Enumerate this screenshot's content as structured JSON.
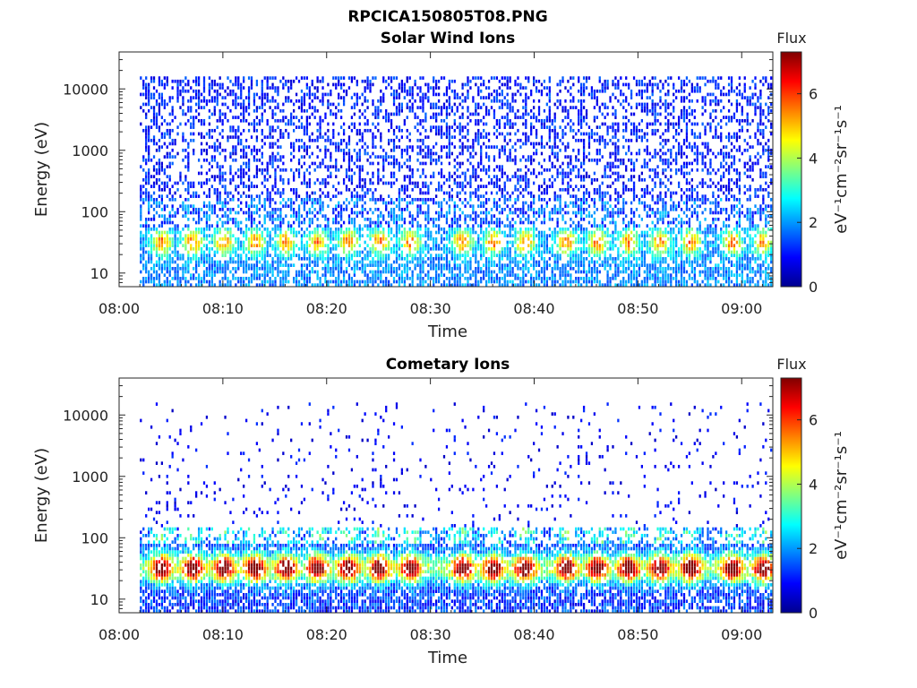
{
  "figure_title": "RPCICA150805T08.PNG",
  "colormap": [
    "#00008f",
    "#0000ff",
    "#0080ff",
    "#00ffff",
    "#80ff80",
    "#ffff00",
    "#ff8000",
    "#ff0000",
    "#800000"
  ],
  "chart_data": [
    {
      "type": "heatmap",
      "title": "Solar Wind Ions",
      "xlabel": "Time",
      "ylabel": "Energy (eV)",
      "yscale": "log",
      "ylim": [
        6,
        40000
      ],
      "xlim": [
        "08:00",
        "09:03"
      ],
      "x_ticks": [
        "08:00",
        "08:10",
        "08:20",
        "08:30",
        "08:40",
        "08:50",
        "09:00"
      ],
      "y_ticks": [
        "10",
        "100",
        "1000",
        "10000"
      ],
      "data_start": "08:02",
      "colorbar": {
        "title": "Flux",
        "label": "eV⁻¹cm⁻²sr⁻¹s⁻¹",
        "range": [
          0,
          7.3
        ],
        "ticks": [
          "0",
          "2",
          "4",
          "6"
        ]
      },
      "flux_peak_energy_eV": 30,
      "flux_peak_level": 5.2,
      "background_level": 1.3,
      "peak_times": [
        "08:04",
        "08:07",
        "08:10",
        "08:13",
        "08:16",
        "08:19",
        "08:22",
        "08:25",
        "08:28",
        "08:33",
        "08:36",
        "08:39",
        "08:43",
        "08:46",
        "08:49",
        "08:52",
        "08:55",
        "08:59",
        "09:02"
      ]
    },
    {
      "type": "heatmap",
      "title": "Cometary Ions",
      "xlabel": "Time",
      "ylabel": "Energy (eV)",
      "yscale": "log",
      "ylim": [
        6,
        40000
      ],
      "xlim": [
        "08:00",
        "09:03"
      ],
      "x_ticks": [
        "08:00",
        "08:10",
        "08:20",
        "08:30",
        "08:40",
        "08:50",
        "09:00"
      ],
      "y_ticks": [
        "10",
        "100",
        "1000",
        "10000"
      ],
      "data_start": "08:02",
      "colorbar": {
        "title": "Flux",
        "label": "eV⁻¹cm⁻²sr⁻¹s⁻¹",
        "range": [
          0,
          7.3
        ],
        "ticks": [
          "0",
          "2",
          "4",
          "6"
        ]
      },
      "flux_peak_energy_eV": 30,
      "flux_peak_level": 7.0,
      "background_level": 0.6,
      "peak_times": [
        "08:04",
        "08:07",
        "08:10",
        "08:13",
        "08:16",
        "08:19",
        "08:22",
        "08:25",
        "08:28",
        "08:33",
        "08:36",
        "08:39",
        "08:43",
        "08:46",
        "08:49",
        "08:52",
        "08:55",
        "08:59",
        "09:02"
      ]
    }
  ]
}
